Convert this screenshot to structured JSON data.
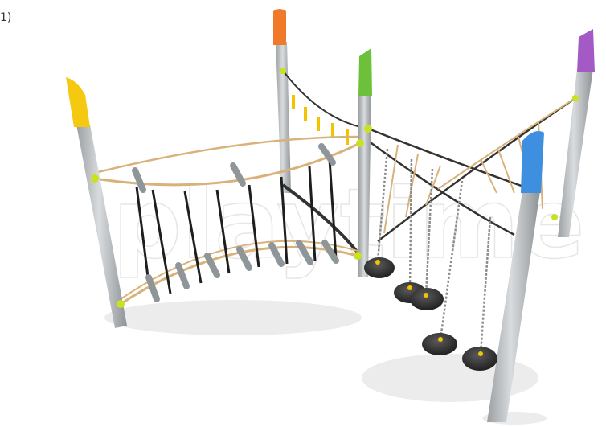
{
  "caption": "1)",
  "watermark": "playtime"
}
